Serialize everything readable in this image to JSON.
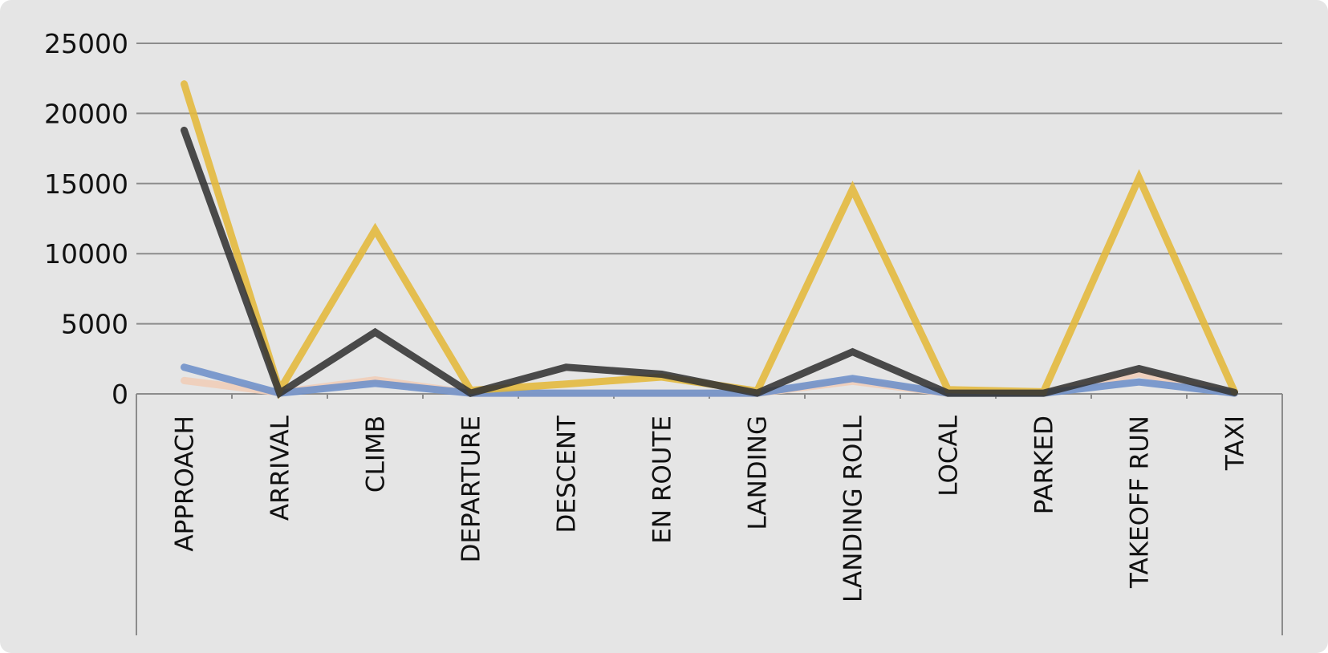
{
  "chart_data": {
    "type": "line",
    "title": "",
    "xlabel": "",
    "ylabel": "",
    "categories": [
      "APPROACH",
      "ARRIVAL",
      "CLIMB",
      "DEPARTURE",
      "DESCENT",
      "EN ROUTE",
      "LANDING",
      "LANDING ROLL",
      "LOCAL",
      "PARKED",
      "TAKEOFF RUN",
      "TAXI"
    ],
    "ylim": [
      0,
      25000
    ],
    "yticks": [
      0,
      5000,
      10000,
      15000,
      20000,
      25000
    ],
    "grid": true,
    "legend": "none",
    "series": [
      {
        "color": "#f0cdb8",
        "values": [
          950,
          100,
          1000,
          50,
          50,
          50,
          50,
          900,
          50,
          50,
          1450,
          50
        ]
      },
      {
        "color": "#6d8fc9",
        "values": [
          1900,
          50,
          750,
          50,
          50,
          50,
          50,
          1100,
          50,
          50,
          850,
          50
        ]
      },
      {
        "color": "#e4b83a",
        "values": [
          22100,
          250,
          11700,
          250,
          700,
          1200,
          200,
          14600,
          300,
          150,
          15400,
          150
        ]
      },
      {
        "color": "#333333",
        "values": [
          18800,
          50,
          4400,
          50,
          1900,
          1400,
          50,
          3000,
          50,
          50,
          1800,
          100
        ]
      }
    ]
  }
}
